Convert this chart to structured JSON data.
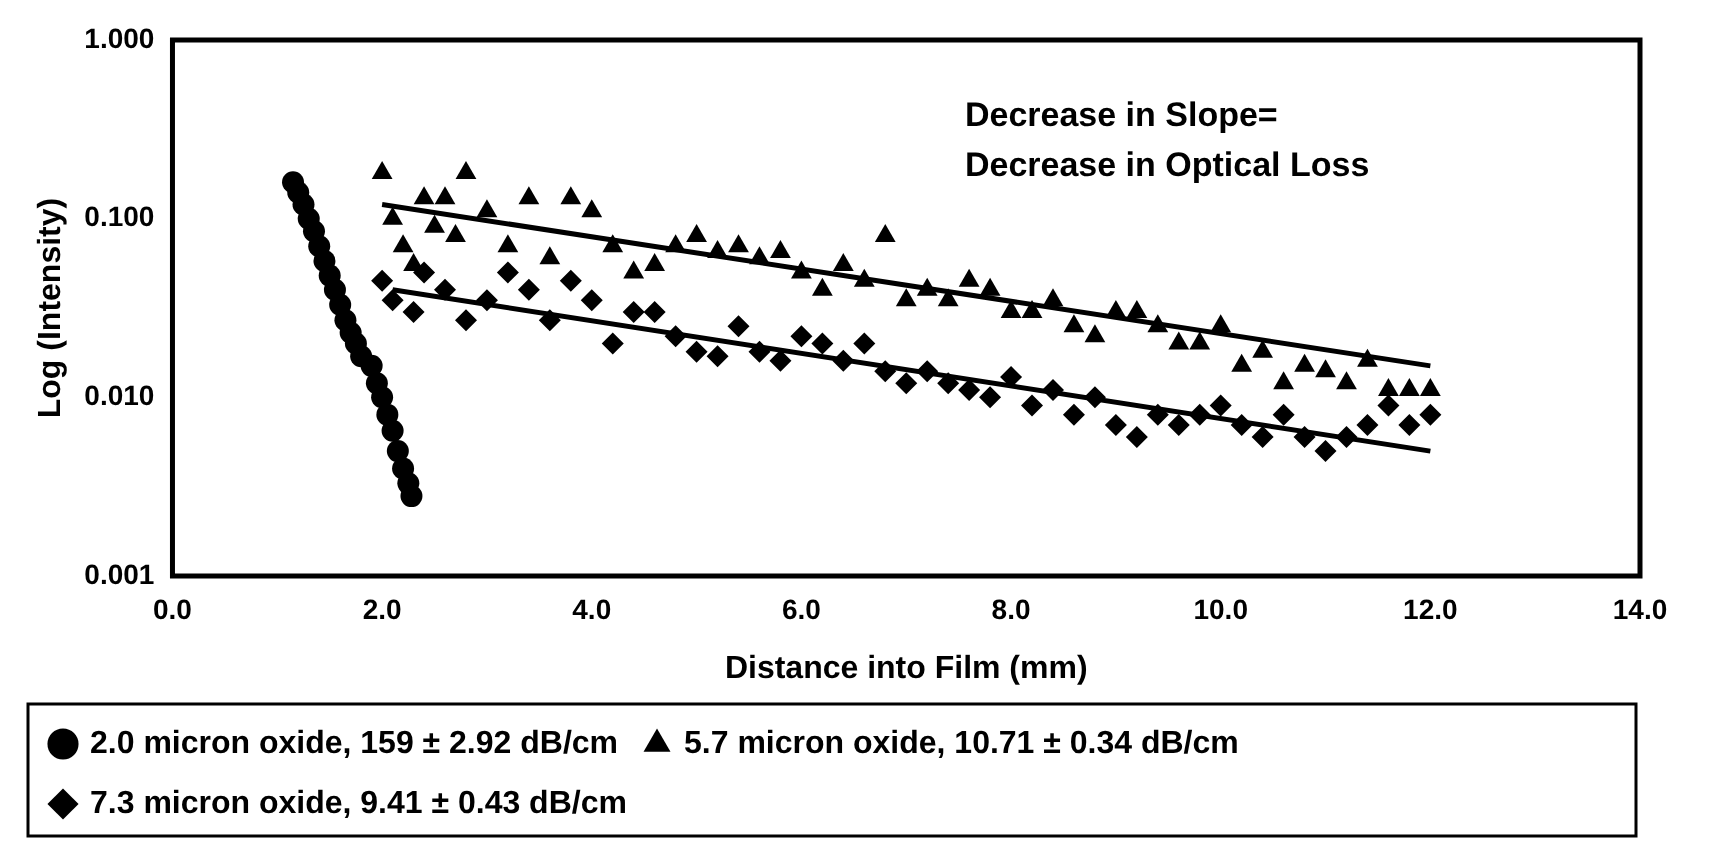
{
  "chart_data": {
    "type": "scatter",
    "xlabel": "Distance into Film (mm)",
    "ylabel": "Log (Intensity)",
    "annotations": [
      "Decrease in Slope=\nDecrease in Optical Loss"
    ],
    "log": "y",
    "grid": false,
    "legend": "bottom",
    "xlim": [
      0,
      14
    ],
    "xticks": [
      {
        "value": 0,
        "label": "0.0"
      },
      {
        "value": 2,
        "label": "2.0"
      },
      {
        "value": 4,
        "label": "4.0"
      },
      {
        "value": 6,
        "label": "6.0"
      },
      {
        "value": 8,
        "label": "8.0"
      },
      {
        "value": 10,
        "label": "10.0"
      },
      {
        "value": 12,
        "label": "12.0"
      },
      {
        "value": 14,
        "label": "14.0"
      }
    ],
    "ylim": [
      0.001,
      1
    ],
    "yticks": [
      {
        "value": 0.001,
        "label": "0.001"
      },
      {
        "value": 0.01,
        "label": "0.010"
      },
      {
        "value": 0.1,
        "label": "0.100"
      },
      {
        "value": 1,
        "label": "1.000"
      }
    ],
    "series": [
      {
        "name": "2.0 micron oxide, 159 ± 2.92 dB/cm",
        "color": "#000000",
        "marker": "circle",
        "x": [
          1.15,
          1.2,
          1.25,
          1.3,
          1.35,
          1.4,
          1.45,
          1.5,
          1.55,
          1.6,
          1.65,
          1.7,
          1.75,
          1.8,
          1.9,
          1.95,
          2.0,
          2.05,
          2.1,
          2.15,
          2.2,
          2.25,
          2.28
        ],
        "values": [
          0.16,
          0.14,
          0.12,
          0.1,
          0.085,
          0.07,
          0.058,
          0.048,
          0.04,
          0.033,
          0.027,
          0.023,
          0.02,
          0.017,
          0.015,
          0.012,
          0.01,
          0.008,
          0.0065,
          0.005,
          0.004,
          0.0033,
          0.0028
        ]
      },
      {
        "name": "5.7 micron oxide, 10.71 ± 0.34 dB/cm",
        "color": "#000000",
        "marker": "triangle",
        "x": [
          2.0,
          2.1,
          2.2,
          2.3,
          2.4,
          2.5,
          2.6,
          2.7,
          2.8,
          3.0,
          3.2,
          3.4,
          3.6,
          3.8,
          4.0,
          4.2,
          4.4,
          4.6,
          4.8,
          5.0,
          5.2,
          5.4,
          5.6,
          5.8,
          6.0,
          6.2,
          6.4,
          6.6,
          6.8,
          7.0,
          7.2,
          7.4,
          7.6,
          7.8,
          8.0,
          8.2,
          8.4,
          8.6,
          8.8,
          9.0,
          9.2,
          9.4,
          9.6,
          9.8,
          10.0,
          10.2,
          10.4,
          10.6,
          10.8,
          11.0,
          11.2,
          11.4,
          11.6,
          11.8,
          12.0
        ],
        "values": [
          0.18,
          0.1,
          0.07,
          0.055,
          0.13,
          0.09,
          0.13,
          0.08,
          0.18,
          0.11,
          0.07,
          0.13,
          0.06,
          0.13,
          0.11,
          0.07,
          0.05,
          0.055,
          0.07,
          0.08,
          0.065,
          0.07,
          0.06,
          0.065,
          0.05,
          0.04,
          0.055,
          0.045,
          0.08,
          0.035,
          0.04,
          0.035,
          0.045,
          0.04,
          0.03,
          0.03,
          0.035,
          0.025,
          0.022,
          0.03,
          0.03,
          0.025,
          0.02,
          0.02,
          0.025,
          0.015,
          0.018,
          0.012,
          0.015,
          0.014,
          0.012,
          0.016,
          0.011,
          0.011,
          0.011
        ]
      },
      {
        "name": "7.3 micron oxide, 9.41 ± 0.43 dB/cm",
        "color": "#000000",
        "marker": "diamond",
        "x": [
          2.0,
          2.1,
          2.3,
          2.4,
          2.6,
          2.8,
          3.0,
          3.2,
          3.4,
          3.6,
          3.8,
          4.0,
          4.2,
          4.4,
          4.6,
          4.8,
          5.0,
          5.2,
          5.4,
          5.6,
          5.8,
          6.0,
          6.2,
          6.4,
          6.6,
          6.8,
          7.0,
          7.2,
          7.4,
          7.6,
          7.8,
          8.0,
          8.2,
          8.4,
          8.6,
          8.8,
          9.0,
          9.2,
          9.4,
          9.6,
          9.8,
          10.0,
          10.2,
          10.4,
          10.6,
          10.8,
          11.0,
          11.2,
          11.4,
          11.6,
          11.8,
          12.0
        ],
        "values": [
          0.045,
          0.035,
          0.03,
          0.05,
          0.04,
          0.027,
          0.035,
          0.05,
          0.04,
          0.027,
          0.045,
          0.035,
          0.02,
          0.03,
          0.03,
          0.022,
          0.018,
          0.017,
          0.025,
          0.018,
          0.016,
          0.022,
          0.02,
          0.016,
          0.02,
          0.014,
          0.012,
          0.014,
          0.012,
          0.011,
          0.01,
          0.013,
          0.009,
          0.011,
          0.008,
          0.01,
          0.007,
          0.006,
          0.008,
          0.007,
          0.008,
          0.009,
          0.007,
          0.006,
          0.008,
          0.006,
          0.005,
          0.006,
          0.007,
          0.009,
          0.007,
          0.008
        ]
      },
      {
        "type": "line",
        "color": "#000000",
        "marker": "none",
        "x": [
          2.0,
          12.0
        ],
        "values": [
          0.12,
          0.015
        ]
      },
      {
        "type": "line",
        "color": "#000000",
        "marker": "none",
        "x": [
          2.1,
          12.0
        ],
        "values": [
          0.04,
          0.005
        ]
      }
    ]
  }
}
